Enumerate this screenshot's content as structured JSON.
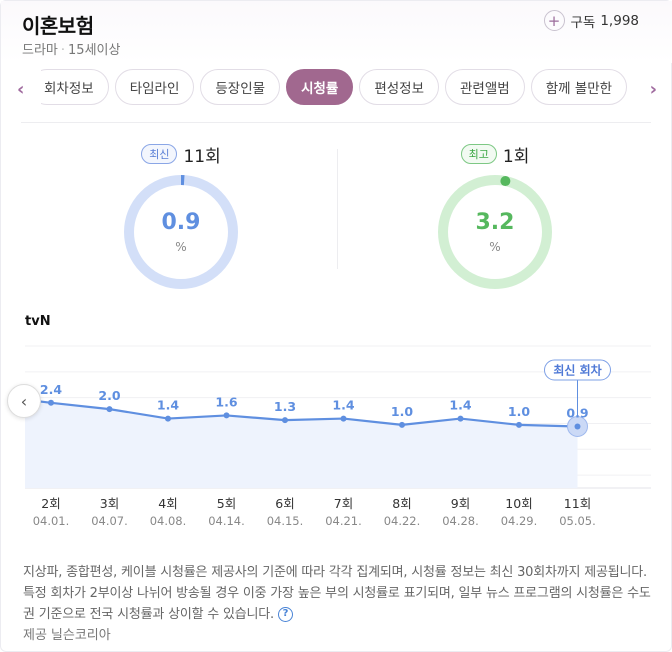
{
  "header": {
    "title": "이혼보험",
    "genre": "드라마",
    "rating": "15세이상",
    "subscribe_label": "구독",
    "subscribe_count": "1,998"
  },
  "tabs": [
    "회차정보",
    "타임라인",
    "등장인물",
    "시청률",
    "편성정보",
    "관련앨범",
    "함께 볼만한"
  ],
  "active_tab": "시청률",
  "summary": {
    "latest": {
      "badge": "최신",
      "episode": "11회",
      "value": "0.9",
      "unit": "%",
      "fraction": 0.009
    },
    "best": {
      "badge": "최고",
      "episode": "1회",
      "value": "3.2",
      "unit": "%",
      "fraction": 0.032
    }
  },
  "colors": {
    "brand": "#a1688f",
    "blue": "#5f8fe0",
    "green": "#56b85e"
  },
  "chart_data": {
    "type": "line",
    "network": "tvN",
    "x": [
      "2회",
      "3회",
      "4회",
      "5회",
      "6회",
      "7회",
      "8회",
      "9회",
      "10회",
      "11회"
    ],
    "dates": [
      "04.01.",
      "04.07.",
      "04.08.",
      "04.14.",
      "04.15.",
      "04.21.",
      "04.22.",
      "04.28.",
      "04.29.",
      "05.05."
    ],
    "values": [
      2.4,
      2.0,
      1.4,
      1.6,
      1.3,
      1.4,
      1.0,
      1.4,
      1.0,
      0.9
    ],
    "latest_label": "최신 회차",
    "ylim": [
      -3,
      6
    ],
    "grid": true
  },
  "note": "지상파, 종합편성, 케이블 시청률은 제공사의 기준에 따라 각각 집계되며, 시청률 정보는 최신 30회차까지 제공됩니다. 특정 회차가 2부이상 나뉘어 방송될 경우 이중 가장 높은 부의 시청률로 표기되며, 일부 뉴스 프로그램의 시청률은 수도권 기준으로 전국 시청률과 상이할 수 있습니다.",
  "source": {
    "label": "제공",
    "name": "닐슨코리아"
  }
}
